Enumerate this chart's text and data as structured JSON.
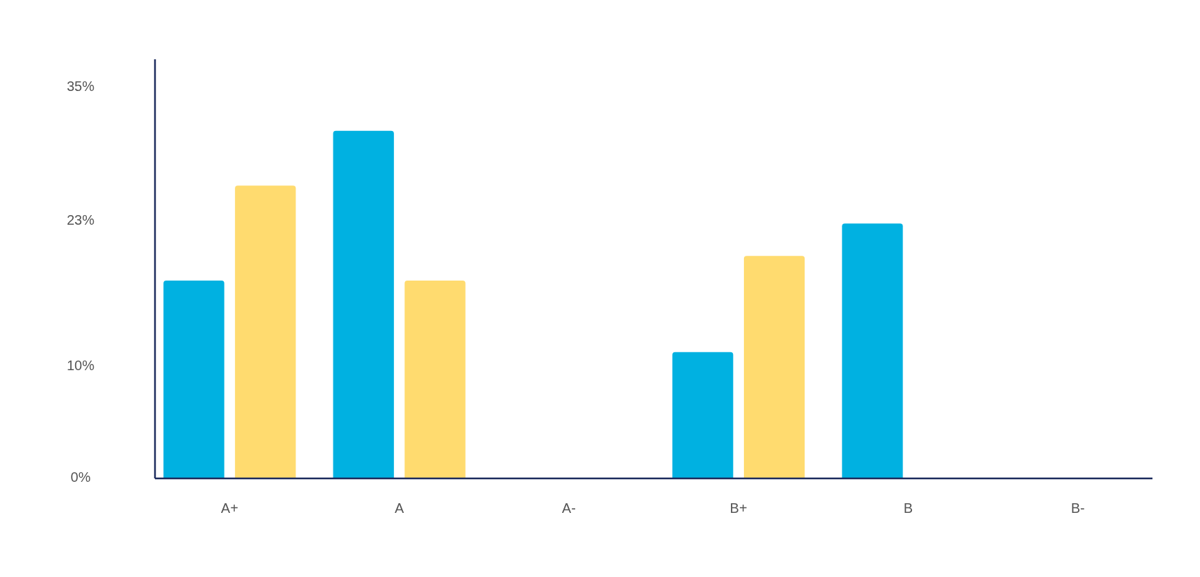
{
  "chart_data": {
    "type": "bar",
    "categories": [
      "A+",
      "A",
      "A-",
      "B+",
      "B",
      "B-"
    ],
    "series": [
      {
        "color": "#00b1e1",
        "values": [
          17.7,
          31.1,
          null,
          11.3,
          22.8,
          null
        ]
      },
      {
        "color": "#ffdb6f",
        "values": [
          26.2,
          17.7,
          null,
          19.9,
          null,
          null
        ]
      }
    ],
    "ylim": [
      0,
      37.5
    ],
    "yticks": [
      {
        "value": 0,
        "label": "0%"
      },
      {
        "value": 10,
        "label": "10%"
      },
      {
        "value": 23,
        "label": "23%"
      },
      {
        "value": 35,
        "label": "35%"
      }
    ],
    "grid": false
  }
}
